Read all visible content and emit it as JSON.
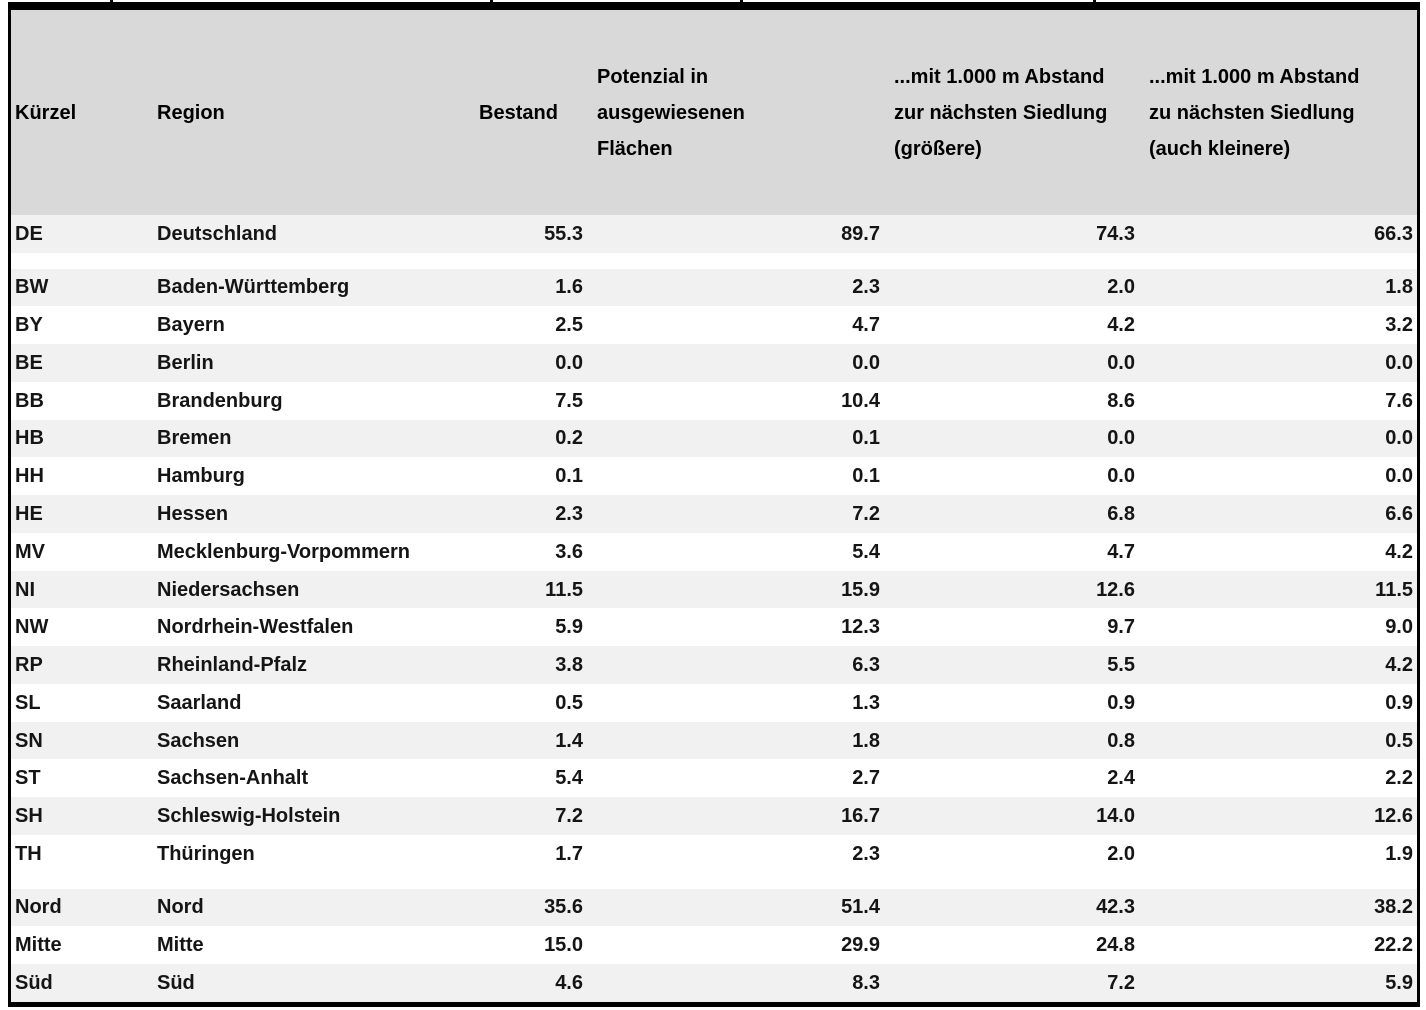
{
  "colors": {
    "header_bg": "#d9d9d9",
    "stripe_bg": "#f1f1f1",
    "border": "#000000",
    "text": "#151515"
  },
  "table": {
    "column_keys": [
      "kuerzel",
      "region",
      "bestand",
      "potenzial-flaechen",
      "abstand-1000m-groessere",
      "abstand-1000m-kleinere"
    ],
    "columns": [
      {
        "label": "Kürzel"
      },
      {
        "label": "Region"
      },
      {
        "label": "Bestand"
      },
      {
        "label": "Potenzial in\nausgewiesenen\nFlächen"
      },
      {
        "label": "...mit 1.000 m Abstand\nzur nächsten Siedlung\n(größere)"
      },
      {
        "label": "...mit 1.000 m Abstand\nzu nächsten Siedlung\n(auch kleinere)"
      }
    ],
    "rows": [
      {
        "cells": [
          "DE",
          "Deutschland",
          "55.3",
          "89.7",
          "74.3",
          "66.3"
        ],
        "shaded": true,
        "blank": false
      },
      {
        "cells": [
          "",
          "",
          "",
          "",
          "",
          ""
        ],
        "shaded": false,
        "blank": true
      },
      {
        "cells": [
          "BW",
          "Baden-Württemberg",
          "1.6",
          "2.3",
          "2.0",
          "1.8"
        ],
        "shaded": true,
        "blank": false
      },
      {
        "cells": [
          "BY",
          "Bayern",
          "2.5",
          "4.7",
          "4.2",
          "3.2"
        ],
        "shaded": false,
        "blank": false
      },
      {
        "cells": [
          "BE",
          "Berlin",
          "0.0",
          "0.0",
          "0.0",
          "0.0"
        ],
        "shaded": true,
        "blank": false
      },
      {
        "cells": [
          "BB",
          "Brandenburg",
          "7.5",
          "10.4",
          "8.6",
          "7.6"
        ],
        "shaded": false,
        "blank": false
      },
      {
        "cells": [
          "HB",
          "Bremen",
          "0.2",
          "0.1",
          "0.0",
          "0.0"
        ],
        "shaded": true,
        "blank": false
      },
      {
        "cells": [
          "HH",
          "Hamburg",
          "0.1",
          "0.1",
          "0.0",
          "0.0"
        ],
        "shaded": false,
        "blank": false
      },
      {
        "cells": [
          "HE",
          "Hessen",
          "2.3",
          "7.2",
          "6.8",
          "6.6"
        ],
        "shaded": true,
        "blank": false
      },
      {
        "cells": [
          "MV",
          "Mecklenburg-Vorpommern",
          "3.6",
          "5.4",
          "4.7",
          "4.2"
        ],
        "shaded": false,
        "blank": false
      },
      {
        "cells": [
          "NI",
          "Niedersachsen",
          "11.5",
          "15.9",
          "12.6",
          "11.5"
        ],
        "shaded": true,
        "blank": false
      },
      {
        "cells": [
          "NW",
          "Nordrhein-Westfalen",
          "5.9",
          "12.3",
          "9.7",
          "9.0"
        ],
        "shaded": false,
        "blank": false
      },
      {
        "cells": [
          "RP",
          "Rheinland-Pfalz",
          "3.8",
          "6.3",
          "5.5",
          "4.2"
        ],
        "shaded": true,
        "blank": false
      },
      {
        "cells": [
          "SL",
          "Saarland",
          "0.5",
          "1.3",
          "0.9",
          "0.9"
        ],
        "shaded": false,
        "blank": false
      },
      {
        "cells": [
          "SN",
          "Sachsen",
          "1.4",
          "1.8",
          "0.8",
          "0.5"
        ],
        "shaded": true,
        "blank": false
      },
      {
        "cells": [
          "ST",
          "Sachsen-Anhalt",
          "5.4",
          "2.7",
          "2.4",
          "2.2"
        ],
        "shaded": false,
        "blank": false
      },
      {
        "cells": [
          "SH",
          "Schleswig-Holstein",
          "7.2",
          "16.7",
          "14.0",
          "12.6"
        ],
        "shaded": true,
        "blank": false
      },
      {
        "cells": [
          "TH",
          "Thüringen",
          "1.7",
          "2.3",
          "2.0",
          "1.9"
        ],
        "shaded": false,
        "blank": false
      },
      {
        "cells": [
          "",
          "",
          "",
          "",
          "",
          ""
        ],
        "shaded": false,
        "blank": true
      },
      {
        "cells": [
          "Nord",
          "Nord",
          "35.6",
          "51.4",
          "42.3",
          "38.2"
        ],
        "shaded": true,
        "blank": false
      },
      {
        "cells": [
          "Mitte",
          "Mitte",
          "15.0",
          "29.9",
          "24.8",
          "22.2"
        ],
        "shaded": false,
        "blank": false
      },
      {
        "cells": [
          "Süd",
          "Süd",
          "4.6",
          "8.3",
          "7.2",
          "5.9"
        ],
        "shaded": true,
        "blank": false
      }
    ]
  },
  "chart_data": {
    "type": "table",
    "columns": [
      "Kürzel",
      "Region",
      "Bestand",
      "Potenzial in ausgewiesenen Flächen",
      "...mit 1.000 m Abstand zur nächsten Siedlung (größere)",
      "...mit 1.000 m Abstand zu nächsten Siedlung (auch kleinere)"
    ],
    "rows": [
      [
        "DE",
        "Deutschland",
        55.3,
        89.7,
        74.3,
        66.3
      ],
      [
        "BW",
        "Baden-Württemberg",
        1.6,
        2.3,
        2.0,
        1.8
      ],
      [
        "BY",
        "Bayern",
        2.5,
        4.7,
        4.2,
        3.2
      ],
      [
        "BE",
        "Berlin",
        0.0,
        0.0,
        0.0,
        0.0
      ],
      [
        "BB",
        "Brandenburg",
        7.5,
        10.4,
        8.6,
        7.6
      ],
      [
        "HB",
        "Bremen",
        0.2,
        0.1,
        0.0,
        0.0
      ],
      [
        "HH",
        "Hamburg",
        0.1,
        0.1,
        0.0,
        0.0
      ],
      [
        "HE",
        "Hessen",
        2.3,
        7.2,
        6.8,
        6.6
      ],
      [
        "MV",
        "Mecklenburg-Vorpommern",
        3.6,
        5.4,
        4.7,
        4.2
      ],
      [
        "NI",
        "Niedersachsen",
        11.5,
        15.9,
        12.6,
        11.5
      ],
      [
        "NW",
        "Nordrhein-Westfalen",
        5.9,
        12.3,
        9.7,
        9.0
      ],
      [
        "RP",
        "Rheinland-Pfalz",
        3.8,
        6.3,
        5.5,
        4.2
      ],
      [
        "SL",
        "Saarland",
        0.5,
        1.3,
        0.9,
        0.9
      ],
      [
        "SN",
        "Sachsen",
        1.4,
        1.8,
        0.8,
        0.5
      ],
      [
        "ST",
        "Sachsen-Anhalt",
        5.4,
        2.7,
        2.4,
        2.2
      ],
      [
        "SH",
        "Schleswig-Holstein",
        7.2,
        16.7,
        14.0,
        12.6
      ],
      [
        "TH",
        "Thüringen",
        1.7,
        2.3,
        2.0,
        1.9
      ],
      [
        "Nord",
        "Nord",
        35.6,
        51.4,
        42.3,
        38.2
      ],
      [
        "Mitte",
        "Mitte",
        15.0,
        29.9,
        24.8,
        22.2
      ],
      [
        "Süd",
        "Süd",
        4.6,
        8.3,
        7.2,
        5.9
      ]
    ]
  }
}
